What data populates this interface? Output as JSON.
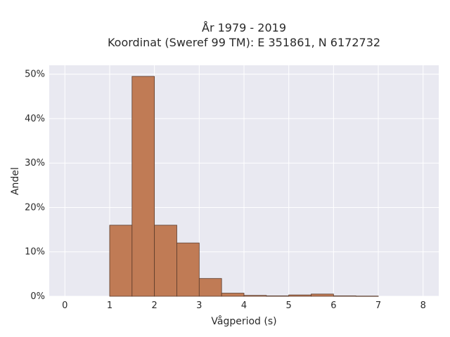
{
  "chart_data": {
    "type": "bar",
    "title_line1": "År 1979 - 2019",
    "title_line2": "Koordinat (Sweref 99 TM): E 351861, N 6172732",
    "xlabel": "Vågperiod (s)",
    "ylabel": "Andel",
    "xlim": [
      -0.35,
      8.35
    ],
    "ylim": [
      0,
      52
    ],
    "xticks": [
      0,
      1,
      2,
      3,
      4,
      5,
      6,
      7,
      8
    ],
    "xtick_labels": [
      "0",
      "1",
      "2",
      "3",
      "4",
      "5",
      "6",
      "7",
      "8"
    ],
    "yticks": [
      0,
      10,
      20,
      30,
      40,
      50
    ],
    "ytick_labels": [
      "0%",
      "10%",
      "20%",
      "30%",
      "40%",
      "50%"
    ],
    "grid": true,
    "bins": [
      {
        "x0": 1.0,
        "x1": 1.5,
        "value": 16.0
      },
      {
        "x0": 1.5,
        "x1": 2.0,
        "value": 49.5
      },
      {
        "x0": 2.0,
        "x1": 2.5,
        "value": 16.0
      },
      {
        "x0": 2.5,
        "x1": 3.0,
        "value": 12.0
      },
      {
        "x0": 3.0,
        "x1": 3.5,
        "value": 4.0
      },
      {
        "x0": 3.5,
        "x1": 4.0,
        "value": 0.7
      },
      {
        "x0": 4.0,
        "x1": 4.5,
        "value": 0.2
      },
      {
        "x0": 4.5,
        "x1": 5.0,
        "value": 0.1
      },
      {
        "x0": 5.0,
        "x1": 5.5,
        "value": 0.3
      },
      {
        "x0": 5.5,
        "x1": 6.0,
        "value": 0.5
      },
      {
        "x0": 6.0,
        "x1": 6.5,
        "value": 0.1
      },
      {
        "x0": 6.5,
        "x1": 7.0,
        "value": 0.05
      }
    ],
    "colors": {
      "plot_bg": "#e9e9f1",
      "grid": "#ffffff",
      "bar_fill": "#c07b55",
      "bar_stroke": "#5a3a2a"
    }
  }
}
